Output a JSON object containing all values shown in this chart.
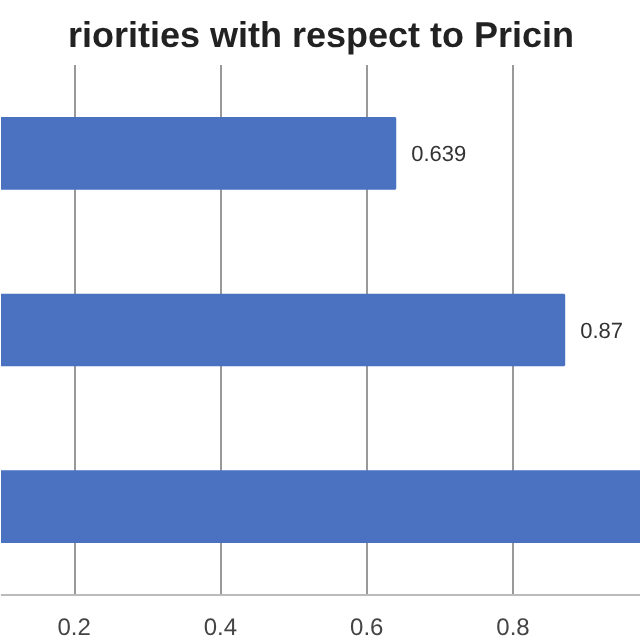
{
  "chart_data": {
    "type": "bar",
    "orientation": "horizontal",
    "title": "riorities with respect to Pricin",
    "categories": [
      null,
      null,
      null
    ],
    "values": [
      0.639,
      0.87,
      0.975
    ],
    "value_labels": [
      "0.639",
      "0.87",
      null
    ],
    "color": "#4a72c0",
    "xlim": [
      0.1,
      0.975
    ],
    "xticks": [
      0.2,
      0.4,
      0.6,
      0.8
    ],
    "grid": "x",
    "tick_labels": "x"
  }
}
